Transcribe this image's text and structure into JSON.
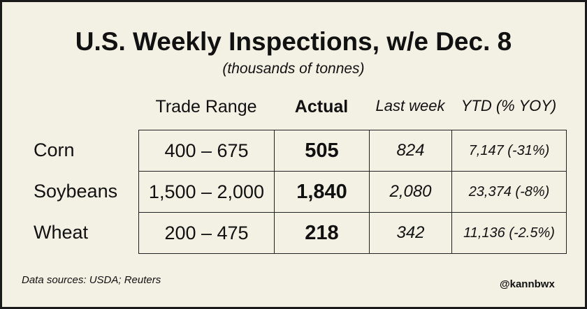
{
  "header": {
    "title": "U.S. Weekly Inspections, w/e Dec. 8",
    "subtitle": "(thousands of tonnes)"
  },
  "table": {
    "columns": [
      "Trade Range",
      "Actual",
      "Last week",
      "YTD (% YOY)"
    ],
    "rows": [
      [
        "Corn",
        "400 – 675",
        "505",
        "824",
        "7,147 (-31%)"
      ],
      [
        "Soybeans",
        "1,500 – 2,000",
        "1,840",
        "2,080",
        "23,374 (-8%)"
      ],
      [
        "Wheat",
        "200 – 475",
        "218",
        "342",
        "11,136 (-2.5%)"
      ]
    ]
  },
  "footer": {
    "source": "Data sources: USDA; Reuters",
    "handle": "@kannbwx"
  }
}
